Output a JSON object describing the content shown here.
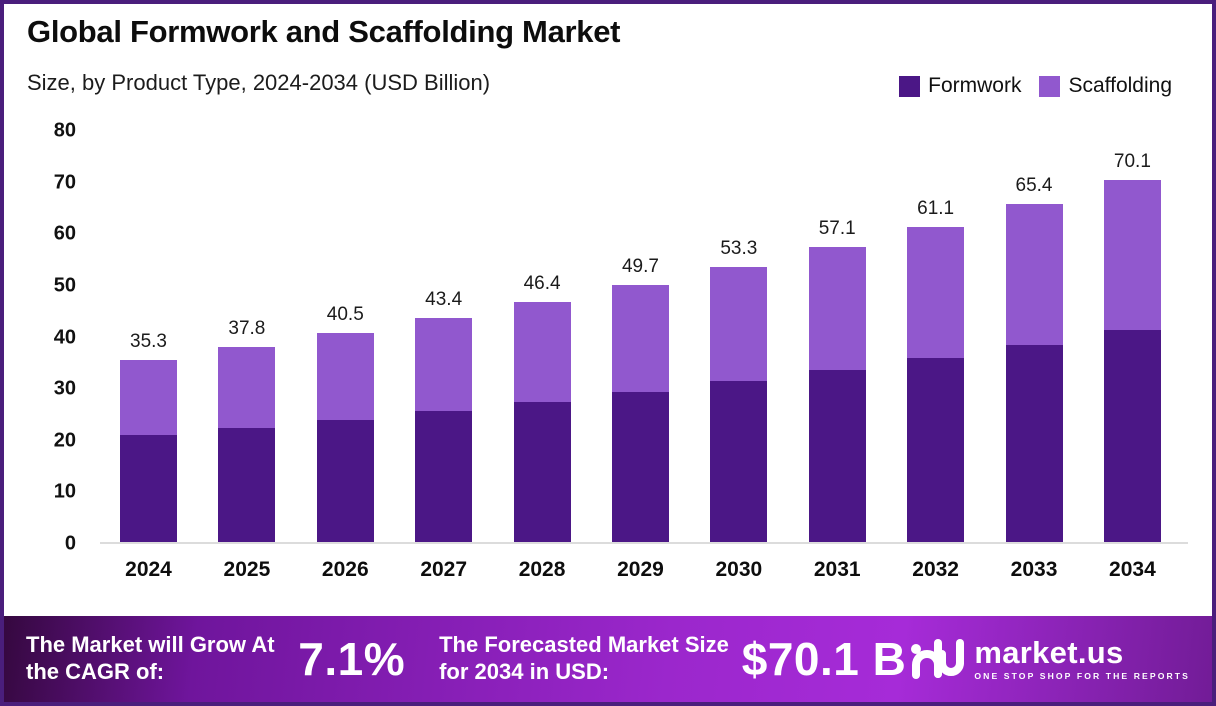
{
  "header": {
    "title": "Global Formwork and Scaffolding Market",
    "subtitle": "Size, by Product Type, 2024-2034 (USD Billion)"
  },
  "legend": {
    "items": [
      {
        "label": "Formwork",
        "color": "#4B1786"
      },
      {
        "label": "Scaffolding",
        "color": "#9158CE"
      }
    ]
  },
  "chart_data": {
    "type": "bar",
    "stacked": true,
    "title": "Global Formwork and Scaffolding Market Size, by Product Type, 2024-2034 (USD Billion)",
    "xlabel": "",
    "ylabel": "",
    "ylim": [
      0,
      80
    ],
    "yticks": [
      80,
      70,
      60,
      50,
      40,
      30,
      20,
      10,
      0
    ],
    "grid": false,
    "legend_position": "top-right",
    "categories": [
      "2024",
      "2025",
      "2026",
      "2027",
      "2028",
      "2029",
      "2030",
      "2031",
      "2032",
      "2033",
      "2034"
    ],
    "series": [
      {
        "name": "Formwork",
        "color": "#4B1786",
        "values": [
          20.7,
          22.1,
          23.7,
          25.4,
          27.1,
          29.1,
          31.2,
          33.4,
          35.7,
          38.2,
          41.0
        ]
      },
      {
        "name": "Scaffolding",
        "color": "#9158CE",
        "values": [
          14.6,
          15.7,
          16.8,
          18.0,
          19.3,
          20.6,
          22.1,
          23.7,
          25.4,
          27.2,
          29.1
        ]
      }
    ],
    "totals": [
      35.3,
      37.8,
      40.5,
      43.4,
      46.4,
      49.7,
      53.3,
      57.1,
      61.1,
      65.4,
      70.1
    ],
    "total_labels": [
      "35.3",
      "37.8",
      "40.5",
      "43.4",
      "46.4",
      "49.7",
      "53.3",
      "57.1",
      "61.1",
      "65.4",
      "70.1"
    ]
  },
  "banner": {
    "cagr_label": "The Market will Grow At the CAGR of:",
    "cagr_value": "7.1%",
    "forecast_label": "The Forecasted Market Size for 2034 in USD:",
    "forecast_value": "$70.1 B",
    "logo_text": "market.us",
    "logo_tagline": "ONE STOP SHOP FOR THE REPORTS"
  }
}
